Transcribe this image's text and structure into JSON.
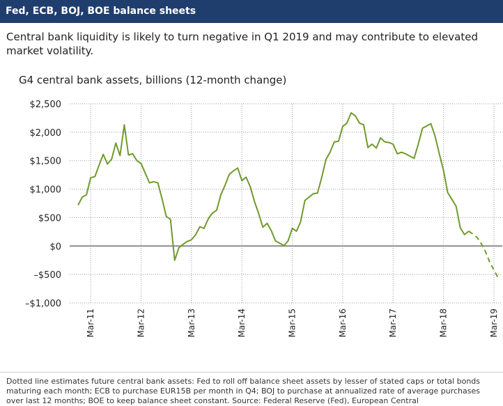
{
  "header": {
    "title": "Fed, ECB, BOJ, BOE balance sheets"
  },
  "subtitle": "Central bank liquidity is likely to turn negative in Q1 2019 and may contribute to elevated market volatility.",
  "colors": {
    "header_bg": "#1f3e6e",
    "line": "#6f9a2d",
    "zero_line": "#8c8c8c"
  },
  "chart_data": {
    "type": "line",
    "title": "G4 central bank assets, billions (12-month change)",
    "xlabel": "",
    "ylabel": "",
    "ylim": [
      -1000,
      2500
    ],
    "xlim": [
      "2010-10",
      "2019-05"
    ],
    "grid": {
      "horizontal": true,
      "vertical": true,
      "style": "dotted"
    },
    "y_ticks": [
      {
        "value": 2500,
        "label": "$2,500"
      },
      {
        "value": 2000,
        "label": "$2,000"
      },
      {
        "value": 1500,
        "label": "$1,500"
      },
      {
        "value": 1000,
        "label": "$1,000"
      },
      {
        "value": 500,
        "label": "$500"
      },
      {
        "value": 0,
        "label": "$0"
      },
      {
        "value": -500,
        "label": "–$500"
      },
      {
        "value": -1000,
        "label": "–$1,000"
      }
    ],
    "x_ticks": [
      {
        "value": "2011-03",
        "label": "Mar-11"
      },
      {
        "value": "2012-03",
        "label": "Mar-12"
      },
      {
        "value": "2013-03",
        "label": "Mar-13"
      },
      {
        "value": "2014-03",
        "label": "Mar-14"
      },
      {
        "value": "2015-03",
        "label": "Mar-15"
      },
      {
        "value": "2016-03",
        "label": "Mar-16"
      },
      {
        "value": "2017-03",
        "label": "Mar-17"
      },
      {
        "value": "2018-03",
        "label": "Mar-18"
      },
      {
        "value": "2019-03",
        "label": "Mar-19"
      }
    ],
    "series": [
      {
        "style": "solid",
        "points": [
          [
            "2010-12",
            720
          ],
          [
            "2011-01",
            860
          ],
          [
            "2011-02",
            900
          ],
          [
            "2011-03",
            1200
          ],
          [
            "2011-04",
            1220
          ],
          [
            "2011-05",
            1420
          ],
          [
            "2011-06",
            1610
          ],
          [
            "2011-07",
            1440
          ],
          [
            "2011-08",
            1530
          ],
          [
            "2011-09",
            1810
          ],
          [
            "2011-10",
            1590
          ],
          [
            "2011-11",
            2130
          ],
          [
            "2011-12",
            1600
          ],
          [
            "2012-01",
            1620
          ],
          [
            "2012-02",
            1500
          ],
          [
            "2012-03",
            1450
          ],
          [
            "2012-04",
            1280
          ],
          [
            "2012-05",
            1110
          ],
          [
            "2012-06",
            1130
          ],
          [
            "2012-07",
            1110
          ],
          [
            "2012-08",
            830
          ],
          [
            "2012-09",
            520
          ],
          [
            "2012-10",
            470
          ],
          [
            "2012-11",
            -250
          ],
          [
            "2012-12",
            -30
          ],
          [
            "2013-01",
            30
          ],
          [
            "2013-02",
            80
          ],
          [
            "2013-03",
            110
          ],
          [
            "2013-04",
            200
          ],
          [
            "2013-05",
            340
          ],
          [
            "2013-06",
            310
          ],
          [
            "2013-07",
            480
          ],
          [
            "2013-08",
            580
          ],
          [
            "2013-09",
            630
          ],
          [
            "2013-10",
            900
          ],
          [
            "2013-11",
            1070
          ],
          [
            "2013-12",
            1260
          ],
          [
            "2014-01",
            1320
          ],
          [
            "2014-02",
            1370
          ],
          [
            "2014-03",
            1150
          ],
          [
            "2014-04",
            1210
          ],
          [
            "2014-05",
            1040
          ],
          [
            "2014-06",
            780
          ],
          [
            "2014-07",
            570
          ],
          [
            "2014-08",
            330
          ],
          [
            "2014-09",
            400
          ],
          [
            "2014-10",
            270
          ],
          [
            "2014-11",
            90
          ],
          [
            "2014-12",
            50
          ],
          [
            "2015-01",
            5
          ],
          [
            "2015-02",
            90
          ],
          [
            "2015-03",
            310
          ],
          [
            "2015-04",
            260
          ],
          [
            "2015-05",
            430
          ],
          [
            "2015-06",
            800
          ],
          [
            "2015-07",
            860
          ],
          [
            "2015-08",
            920
          ],
          [
            "2015-09",
            930
          ],
          [
            "2015-10",
            1200
          ],
          [
            "2015-11",
            1520
          ],
          [
            "2015-12",
            1650
          ],
          [
            "2016-01",
            1830
          ],
          [
            "2016-02",
            1840
          ],
          [
            "2016-03",
            2100
          ],
          [
            "2016-04",
            2160
          ],
          [
            "2016-05",
            2340
          ],
          [
            "2016-06",
            2290
          ],
          [
            "2016-07",
            2160
          ],
          [
            "2016-08",
            2130
          ],
          [
            "2016-09",
            1730
          ],
          [
            "2016-10",
            1790
          ],
          [
            "2016-11",
            1720
          ],
          [
            "2016-12",
            1900
          ],
          [
            "2017-01",
            1830
          ],
          [
            "2017-02",
            1820
          ],
          [
            "2017-03",
            1790
          ],
          [
            "2017-04",
            1620
          ],
          [
            "2017-05",
            1650
          ],
          [
            "2017-06",
            1620
          ],
          [
            "2017-07",
            1580
          ],
          [
            "2017-08",
            1540
          ],
          [
            "2017-09",
            1790
          ],
          [
            "2017-10",
            2070
          ],
          [
            "2017-11",
            2110
          ],
          [
            "2017-12",
            2150
          ],
          [
            "2018-01",
            1930
          ],
          [
            "2018-02",
            1620
          ],
          [
            "2018-03",
            1330
          ],
          [
            "2018-04",
            940
          ],
          [
            "2018-05",
            820
          ],
          [
            "2018-06",
            700
          ],
          [
            "2018-07",
            320
          ],
          [
            "2018-08",
            200
          ],
          [
            "2018-09",
            260
          ]
        ]
      },
      {
        "style": "dotted",
        "points": [
          [
            "2018-09",
            260
          ],
          [
            "2018-10",
            210
          ],
          [
            "2018-11",
            150
          ],
          [
            "2018-12",
            40
          ],
          [
            "2019-01",
            -100
          ],
          [
            "2019-02",
            -280
          ],
          [
            "2019-03",
            -420
          ],
          [
            "2019-04",
            -560
          ]
        ]
      }
    ]
  },
  "footnote": "Dotted line estimates future central bank assets: Fed to roll off balance sheet assets by lesser of stated caps or total bonds maturing each month; ECB to purchase EUR15B per month in Q4; BOJ to purchase at annualized rate of average purchases over last 12 months; BOE to keep balance sheet constant. Source: Federal Reserve (Fed), European Central"
}
